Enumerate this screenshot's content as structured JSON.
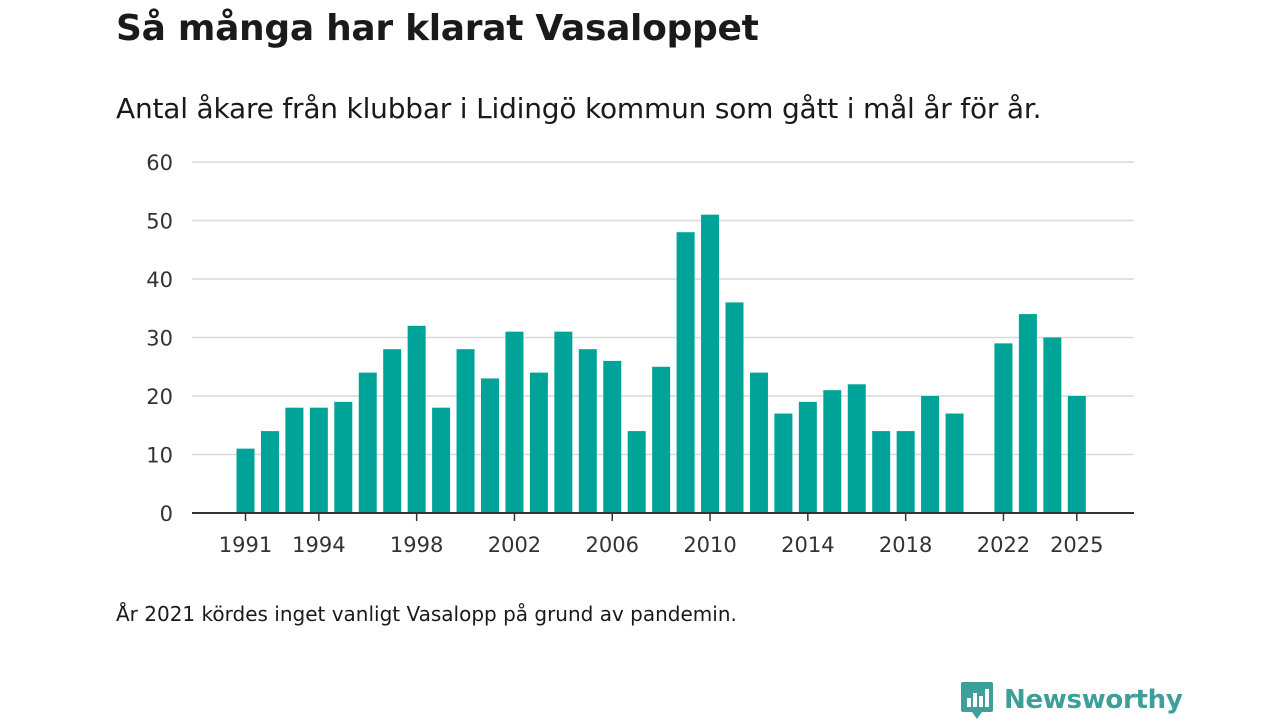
{
  "title": "Så många har klarat Vasaloppet",
  "subtitle": "Antal åkare från klubbar i Lidingö kommun som gått i mål år för år.",
  "note": "År 2021 kördes inget vanligt Vasalopp på grund av pandemin.",
  "brand": {
    "name": "Newsworthy",
    "icon": "newsworthy-logo-icon"
  },
  "colors": {
    "bar": "#00a398",
    "grid": "#d9d9d9",
    "axis": "#333333",
    "brand": "#3e9e9a"
  },
  "chart_data": {
    "type": "bar",
    "title": "Så många har klarat Vasaloppet",
    "xlabel": "",
    "ylabel": "",
    "ylim": [
      0,
      60
    ],
    "yticks": [
      0,
      10,
      20,
      30,
      40,
      50,
      60
    ],
    "xticks": [
      1991,
      1994,
      1998,
      2002,
      2006,
      2010,
      2014,
      2018,
      2022,
      2025
    ],
    "grid": true,
    "categories": [
      1991,
      1992,
      1993,
      1994,
      1995,
      1996,
      1997,
      1998,
      1999,
      2000,
      2001,
      2002,
      2003,
      2004,
      2005,
      2006,
      2007,
      2008,
      2009,
      2010,
      2011,
      2012,
      2013,
      2014,
      2015,
      2016,
      2017,
      2018,
      2019,
      2020,
      2021,
      2022,
      2023,
      2024,
      2025
    ],
    "values": [
      11,
      14,
      18,
      18,
      19,
      24,
      28,
      32,
      18,
      28,
      23,
      31,
      24,
      31,
      28,
      26,
      14,
      25,
      48,
      51,
      36,
      24,
      17,
      19,
      21,
      22,
      14,
      14,
      20,
      17,
      null,
      29,
      34,
      30,
      20
    ]
  }
}
